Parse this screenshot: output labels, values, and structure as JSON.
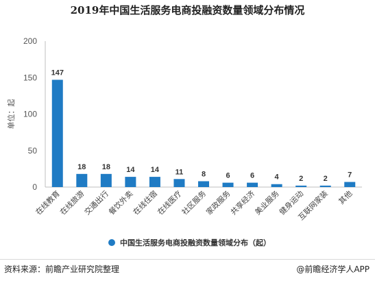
{
  "chart_data": {
    "type": "bar",
    "title": "2019年中国生活服务电商投融资数量领域分布情况",
    "ylabel": "单位：起",
    "xlabel": "",
    "ylim": [
      0,
      200
    ],
    "yticks": [
      0,
      50,
      100,
      150,
      200
    ],
    "grid": false,
    "legend_position": "bottom",
    "categories": [
      "在线教育",
      "在线旅游",
      "交通出行",
      "餐饮外卖",
      "在线住宿",
      "在线医疗",
      "社区服务",
      "家政服务",
      "共享经济",
      "美业服务",
      "健身运动",
      "互联网家装",
      "其他"
    ],
    "series": [
      {
        "name": "中国生活服务电商投融资数量领域分布（起）",
        "color": "#1f7bc4",
        "values": [
          147,
          18,
          18,
          14,
          14,
          11,
          8,
          6,
          6,
          4,
          2,
          2,
          7
        ]
      }
    ]
  },
  "footer": {
    "source": "资料来源：前瞻产业研究院整理",
    "copyright": "@前瞻经济学人APP"
  }
}
